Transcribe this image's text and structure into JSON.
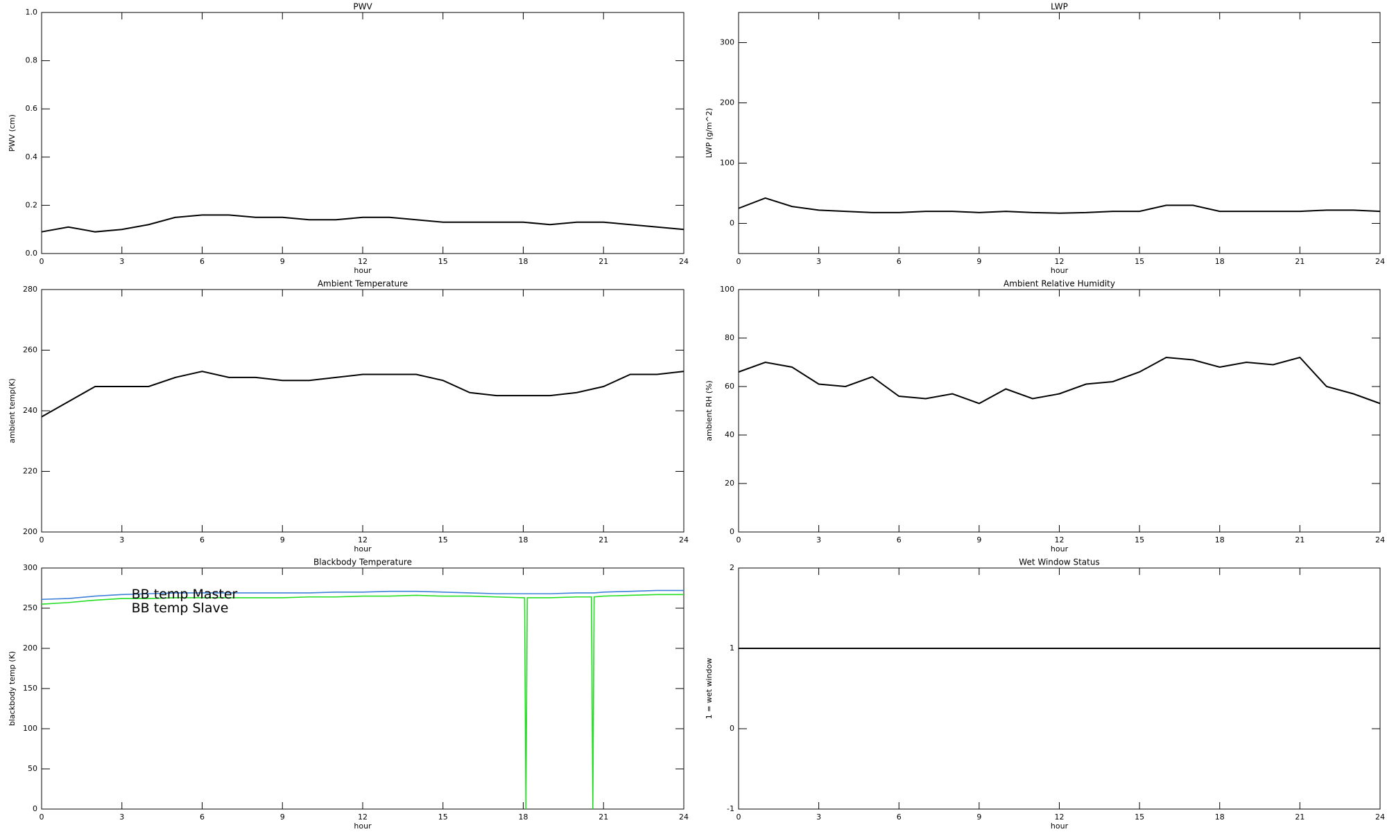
{
  "chart_data": [
    {
      "type": "line",
      "title": "PWV",
      "x_label": "hour",
      "y_label": "PWV (cm)",
      "x": [
        0,
        1,
        2,
        3,
        4,
        5,
        6,
        7,
        8,
        9,
        10,
        11,
        12,
        13,
        14,
        15,
        16,
        17,
        18,
        19,
        20,
        21,
        22,
        23,
        24
      ],
      "values": [
        0.09,
        0.11,
        0.09,
        0.1,
        0.12,
        0.15,
        0.16,
        0.16,
        0.15,
        0.15,
        0.14,
        0.14,
        0.15,
        0.15,
        0.14,
        0.13,
        0.13,
        0.13,
        0.13,
        0.12,
        0.13,
        0.13,
        0.12,
        0.11,
        0.1
      ],
      "color": "#000000",
      "xlim": [
        0,
        24
      ],
      "xticks": [
        0,
        3,
        6,
        9,
        12,
        15,
        18,
        21,
        24
      ],
      "ylim": [
        0,
        1
      ],
      "yticks": [
        {
          "value": 0,
          "label": "0.0"
        },
        0.2,
        0.4,
        0.6,
        0.8,
        {
          "value": 1,
          "label": "1.0"
        }
      ]
    },
    {
      "type": "line",
      "title": "LWP",
      "x_label": "hour",
      "y_label": "LWP (g/m^2)",
      "x": [
        0,
        1,
        2,
        3,
        4,
        5,
        6,
        7,
        8,
        9,
        10,
        11,
        12,
        13,
        14,
        15,
        16,
        17,
        18,
        19,
        20,
        21,
        22,
        23,
        24
      ],
      "values": [
        25,
        42,
        28,
        22,
        20,
        18,
        18,
        20,
        20,
        18,
        20,
        18,
        17,
        18,
        20,
        20,
        30,
        30,
        20,
        20,
        20,
        20,
        22,
        22,
        20
      ],
      "color": "#000000",
      "xlim": [
        0,
        24
      ],
      "xticks": [
        0,
        3,
        6,
        9,
        12,
        15,
        18,
        21,
        24
      ],
      "ylim": [
        -50,
        350
      ],
      "yticks": [
        0,
        100,
        200,
        300
      ]
    },
    {
      "type": "line",
      "title": "Ambient Temperature",
      "x_label": "hour",
      "y_label": "ambient temp(K)",
      "x": [
        0,
        1,
        2,
        3,
        4,
        5,
        6,
        7,
        8,
        9,
        10,
        11,
        12,
        13,
        14,
        15,
        16,
        17,
        18,
        19,
        20,
        21,
        22,
        23,
        24
      ],
      "values": [
        238,
        243,
        248,
        248,
        248,
        251,
        253,
        251,
        251,
        250,
        250,
        251,
        252,
        252,
        252,
        250,
        246,
        245,
        245,
        245,
        246,
        248,
        252,
        252,
        253
      ],
      "color": "#000000",
      "xlim": [
        0,
        24
      ],
      "xticks": [
        0,
        3,
        6,
        9,
        12,
        15,
        18,
        21,
        24
      ],
      "ylim": [
        200,
        280
      ],
      "yticks": [
        200,
        220,
        240,
        260,
        280
      ]
    },
    {
      "type": "line",
      "title": "Ambient Relative Humidity",
      "x_label": "hour",
      "y_label": "ambient RH (%)",
      "x": [
        0,
        1,
        2,
        3,
        4,
        5,
        6,
        7,
        8,
        9,
        10,
        11,
        12,
        13,
        14,
        15,
        16,
        17,
        18,
        19,
        20,
        21,
        22,
        23,
        24
      ],
      "values": [
        66,
        70,
        68,
        61,
        60,
        64,
        56,
        55,
        57,
        53,
        59,
        55,
        57,
        61,
        62,
        66,
        72,
        71,
        68,
        70,
        69,
        72,
        60,
        57,
        53
      ],
      "color": "#000000",
      "xlim": [
        0,
        24
      ],
      "xticks": [
        0,
        3,
        6,
        9,
        12,
        15,
        18,
        21,
        24
      ],
      "ylim": [
        0,
        100
      ],
      "yticks": [
        0,
        20,
        40,
        60,
        80,
        100
      ]
    },
    {
      "type": "line",
      "title": "Blackbody Temperature",
      "x_label": "hour",
      "y_label": "blackbody temp (K)",
      "x": [
        0,
        1,
        2,
        3,
        4,
        5,
        6,
        7,
        8,
        9,
        10,
        11,
        12,
        13,
        14,
        15,
        16,
        17,
        18,
        18.05,
        18.1,
        18.15,
        19,
        20,
        20.55,
        20.6,
        20.65,
        21,
        22,
        23,
        24
      ],
      "series": [
        {
          "name": "BB temp Master",
          "color": "#3a80d8",
          "values": [
            261,
            262,
            265,
            267,
            268,
            269,
            269,
            269,
            269,
            269,
            269,
            270,
            270,
            271,
            271,
            270,
            269,
            268,
            268,
            268,
            268,
            268,
            268,
            269,
            269,
            269,
            269,
            270,
            271,
            272,
            272
          ]
        },
        {
          "name": "BB temp Slave",
          "color": "#22dd22",
          "values": [
            255,
            257,
            260,
            262,
            262,
            263,
            263,
            263,
            263,
            263,
            264,
            264,
            265,
            265,
            266,
            265,
            265,
            264,
            263,
            263,
            0,
            263,
            263,
            264,
            264,
            0,
            264,
            265,
            266,
            267,
            267
          ]
        }
      ],
      "legend": "upper left",
      "xlim": [
        0,
        24
      ],
      "xticks": [
        0,
        3,
        6,
        9,
        12,
        15,
        18,
        21,
        24
      ],
      "ylim": [
        0,
        300
      ],
      "yticks": [
        0,
        50,
        100,
        150,
        200,
        250,
        300
      ]
    },
    {
      "type": "line",
      "title": "Wet Window Status",
      "x_label": "hour",
      "y_label": "1 = wet window",
      "x": [
        0,
        24
      ],
      "values": [
        1,
        1
      ],
      "color": "#000000",
      "xlim": [
        0,
        24
      ],
      "xticks": [
        0,
        3,
        6,
        9,
        12,
        15,
        18,
        21,
        24
      ],
      "ylim": [
        -1,
        2
      ],
      "yticks": [
        -1,
        0,
        1,
        2
      ]
    }
  ]
}
